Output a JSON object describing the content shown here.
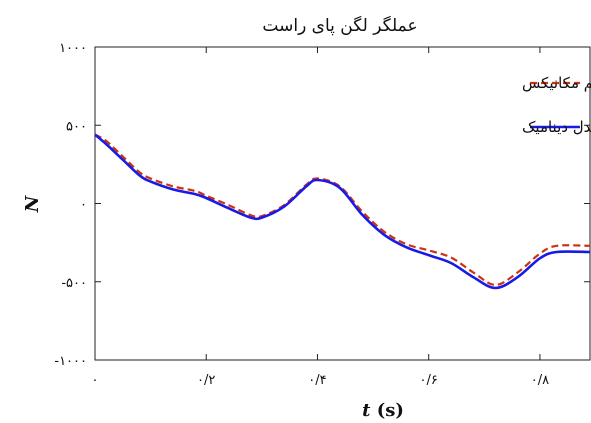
{
  "chart_data": {
    "type": "line",
    "title": "عملگر لگن پای راست",
    "xlabel": "t (s)",
    "ylabel": "N",
    "xlim": [
      0,
      0.89
    ],
    "ylim": [
      -1000,
      1000
    ],
    "x_ticks": [
      0,
      0.2,
      0.4,
      0.6,
      0.8
    ],
    "x_tick_labels": [
      "۰",
      "۰/۲",
      "۰/۴",
      "۰/۶",
      "۰/۸"
    ],
    "y_ticks": [
      1000,
      500,
      0,
      -500,
      -1000
    ],
    "y_tick_labels": [
      "۱۰۰۰",
      "۵۰۰",
      "۰",
      "-۵۰۰",
      "-۱۰۰۰"
    ],
    "grid": false,
    "legend_position": "top-right",
    "series": [
      {
        "name": "سیم مکانیکس",
        "color": "#cc3311",
        "style": "dashed",
        "x": [
          0,
          0.02,
          0.05,
          0.08,
          0.1,
          0.14,
          0.18,
          0.2,
          0.24,
          0.28,
          0.3,
          0.34,
          0.38,
          0.4,
          0.44,
          0.48,
          0.52,
          0.56,
          0.6,
          0.64,
          0.68,
          0.72,
          0.76,
          0.8,
          0.83,
          0.89
        ],
        "values": [
          440,
          400,
          300,
          200,
          160,
          110,
          80,
          50,
          -10,
          -75,
          -80,
          -10,
          120,
          160,
          110,
          -50,
          -180,
          -260,
          -300,
          -345,
          -440,
          -520,
          -440,
          -320,
          -270,
          -270
        ]
      },
      {
        "name": "مدل دینامیک",
        "color": "#1a1ae6",
        "style": "solid",
        "x": [
          0,
          0.02,
          0.05,
          0.08,
          0.1,
          0.14,
          0.18,
          0.2,
          0.24,
          0.28,
          0.3,
          0.34,
          0.38,
          0.4,
          0.44,
          0.48,
          0.52,
          0.56,
          0.6,
          0.64,
          0.68,
          0.72,
          0.76,
          0.8,
          0.83,
          0.89
        ],
        "values": [
          440,
          380,
          280,
          180,
          140,
          90,
          60,
          35,
          -30,
          -90,
          -90,
          -20,
          110,
          150,
          100,
          -70,
          -200,
          -280,
          -330,
          -380,
          -470,
          -540,
          -470,
          -350,
          -310,
          -310
        ]
      }
    ]
  }
}
